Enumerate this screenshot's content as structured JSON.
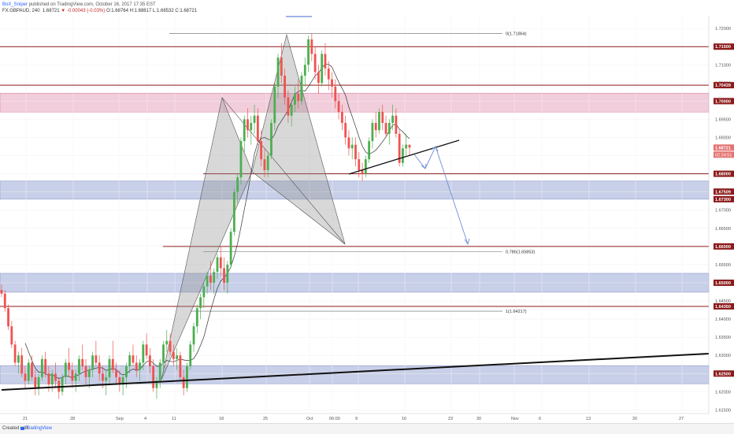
{
  "header": {
    "user": "BoX_Sniper",
    "publish_text": "published on TradingView.com, October 16, 2017 17:35 EST",
    "symbol": "FX:GBPAUD, 240",
    "last": "1.68721",
    "change": "▼ -0.00043 (-0.03%)",
    "ohlc": "O:1.68764 H:1.68817 L:1.68532 C:1.68721"
  },
  "footer": {
    "created": "Created with",
    "brand": "TradingView"
  },
  "colors": {
    "up": "#4caf50",
    "down": "#ef5350",
    "sr_line": "#8b1a1a",
    "pink_zone": "#e8a4bd",
    "blue_zone": "#9aa7d6",
    "pattern": "#9e9e9e",
    "arrow": "#6f8fd6"
  },
  "chart_data": {
    "type": "candlestick",
    "y_range": [
      1.614,
      1.7235
    ],
    "y_ticks": [
      "1.72000",
      "1.71500",
      "1.71000",
      "1.70500",
      "1.70000",
      "1.69500",
      "1.69000",
      "1.68500",
      "1.68000",
      "1.67500",
      "1.67000",
      "1.66500",
      "1.66000",
      "1.65500",
      "1.65000",
      "1.64500",
      "1.64000",
      "1.63500",
      "1.63000",
      "1.62500",
      "1.62000",
      "1.61500"
    ],
    "x_ticks": [
      "21",
      "28",
      "Sep",
      "4",
      "11",
      "18",
      "25",
      "Oct",
      "06:00",
      "9",
      "16",
      "23",
      "30",
      "Nov",
      "6",
      "13",
      "20",
      "27"
    ],
    "price_levels": [
      "1.71500",
      "1.70439",
      "1.70000",
      "1.68721",
      "1.68000",
      "1.67509",
      "1.67300",
      "1.66000",
      "1.65000",
      "1.64350",
      "1.62500"
    ],
    "levels": [
      1.715,
      1.7044,
      1.68,
      1.66,
      1.6435
    ],
    "zones": [
      {
        "kind": "supply",
        "low": 1.697,
        "high": 1.7022
      },
      {
        "kind": "demand",
        "low": 1.673,
        "high": 1.678
      },
      {
        "kind": "demand",
        "low": 1.6474,
        "high": 1.6526
      },
      {
        "kind": "demand",
        "low": 1.6222,
        "high": 1.6272
      }
    ],
    "countdown": "02:24:51",
    "fib_labels": [
      "0(1.71864)",
      "0.786(1.65853)",
      "1(1.64217)"
    ],
    "candles": [
      [
        1.648,
        1.6495,
        1.646,
        1.647
      ],
      [
        1.647,
        1.648,
        1.642,
        1.643
      ],
      [
        1.643,
        1.644,
        1.637,
        1.638
      ],
      [
        1.638,
        1.6395,
        1.632,
        1.633
      ],
      [
        1.633,
        1.634,
        1.627,
        1.628
      ],
      [
        1.628,
        1.631,
        1.625,
        1.63
      ],
      [
        1.63,
        1.632,
        1.624,
        1.625
      ],
      [
        1.625,
        1.627,
        1.621,
        1.623
      ],
      [
        1.623,
        1.629,
        1.622,
        1.628
      ],
      [
        1.628,
        1.63,
        1.623,
        1.624
      ],
      [
        1.624,
        1.626,
        1.619,
        1.621
      ],
      [
        1.621,
        1.625,
        1.619,
        1.624
      ],
      [
        1.624,
        1.63,
        1.623,
        1.629
      ],
      [
        1.629,
        1.631,
        1.624,
        1.625
      ],
      [
        1.625,
        1.627,
        1.62,
        1.622
      ],
      [
        1.622,
        1.626,
        1.62,
        1.625
      ],
      [
        1.625,
        1.628,
        1.621,
        1.623
      ],
      [
        1.623,
        1.624,
        1.618,
        1.62
      ],
      [
        1.62,
        1.625,
        1.619,
        1.624
      ],
      [
        1.624,
        1.629,
        1.622,
        1.628
      ],
      [
        1.628,
        1.632,
        1.624,
        1.626
      ],
      [
        1.626,
        1.628,
        1.621,
        1.623
      ],
      [
        1.623,
        1.626,
        1.62,
        1.625
      ],
      [
        1.625,
        1.63,
        1.623,
        1.629
      ],
      [
        1.629,
        1.633,
        1.626,
        1.627
      ],
      [
        1.627,
        1.629,
        1.622,
        1.624
      ],
      [
        1.624,
        1.627,
        1.621,
        1.626
      ],
      [
        1.626,
        1.631,
        1.624,
        1.63
      ],
      [
        1.63,
        1.634,
        1.627,
        1.628
      ],
      [
        1.628,
        1.63,
        1.623,
        1.625
      ],
      [
        1.625,
        1.627,
        1.621,
        1.623
      ],
      [
        1.623,
        1.626,
        1.619,
        1.624
      ],
      [
        1.624,
        1.63,
        1.622,
        1.629
      ],
      [
        1.629,
        1.634,
        1.625,
        1.626
      ],
      [
        1.626,
        1.628,
        1.622,
        1.624
      ],
      [
        1.624,
        1.626,
        1.62,
        1.622
      ],
      [
        1.622,
        1.625,
        1.619,
        1.624
      ],
      [
        1.624,
        1.628,
        1.621,
        1.627
      ],
      [
        1.627,
        1.631,
        1.625,
        1.63
      ],
      [
        1.63,
        1.633,
        1.627,
        1.628
      ],
      [
        1.628,
        1.63,
        1.624,
        1.626
      ],
      [
        1.626,
        1.629,
        1.623,
        1.628
      ],
      [
        1.628,
        1.634,
        1.626,
        1.633
      ],
      [
        1.633,
        1.636,
        1.629,
        1.63
      ],
      [
        1.63,
        1.632,
        1.625,
        1.627
      ],
      [
        1.627,
        1.629,
        1.62,
        1.621
      ],
      [
        1.621,
        1.624,
        1.618,
        1.623
      ],
      [
        1.623,
        1.629,
        1.621,
        1.628
      ],
      [
        1.628,
        1.634,
        1.626,
        1.633
      ],
      [
        1.633,
        1.637,
        1.631,
        1.634
      ],
      [
        1.634,
        1.636,
        1.63,
        1.631
      ],
      [
        1.631,
        1.633,
        1.627,
        1.629
      ],
      [
        1.629,
        1.632,
        1.626,
        1.63
      ],
      [
        1.63,
        1.631,
        1.623,
        1.624
      ],
      [
        1.624,
        1.626,
        1.619,
        1.621
      ],
      [
        1.621,
        1.628,
        1.62,
        1.627
      ],
      [
        1.627,
        1.634,
        1.626,
        1.633
      ],
      [
        1.633,
        1.639,
        1.631,
        1.638
      ],
      [
        1.638,
        1.644,
        1.636,
        1.643
      ],
      [
        1.643,
        1.647,
        1.64,
        1.646
      ],
      [
        1.646,
        1.65,
        1.643,
        1.649
      ],
      [
        1.649,
        1.653,
        1.647,
        1.652
      ],
      [
        1.652,
        1.656,
        1.648,
        1.65
      ],
      [
        1.65,
        1.654,
        1.647,
        1.653
      ],
      [
        1.653,
        1.658,
        1.651,
        1.657
      ],
      [
        1.657,
        1.66,
        1.652,
        1.654
      ],
      [
        1.654,
        1.657,
        1.648,
        1.65
      ],
      [
        1.65,
        1.656,
        1.647,
        1.655
      ],
      [
        1.655,
        1.665,
        1.654,
        1.664
      ],
      [
        1.664,
        1.676,
        1.663,
        1.675
      ],
      [
        1.675,
        1.68,
        1.672,
        1.679
      ],
      [
        1.679,
        1.69,
        1.677,
        1.689
      ],
      [
        1.689,
        1.696,
        1.686,
        1.695
      ],
      [
        1.695,
        1.698,
        1.69,
        1.692
      ],
      [
        1.692,
        1.696,
        1.688,
        1.694
      ],
      [
        1.694,
        1.699,
        1.691,
        1.696
      ],
      [
        1.696,
        1.698,
        1.688,
        1.689
      ],
      [
        1.689,
        1.692,
        1.682,
        1.684
      ],
      [
        1.684,
        1.687,
        1.679,
        1.681
      ],
      [
        1.681,
        1.686,
        1.679,
        1.685
      ],
      [
        1.685,
        1.695,
        1.684,
        1.694
      ],
      [
        1.694,
        1.705,
        1.692,
        1.704
      ],
      [
        1.704,
        1.713,
        1.701,
        1.712
      ],
      [
        1.712,
        1.716,
        1.705,
        1.707
      ],
      [
        1.707,
        1.709,
        1.699,
        1.701
      ],
      [
        1.701,
        1.703,
        1.694,
        1.696
      ],
      [
        1.696,
        1.7,
        1.693,
        1.699
      ],
      [
        1.699,
        1.704,
        1.697,
        1.702
      ],
      [
        1.702,
        1.706,
        1.698,
        1.7
      ],
      [
        1.7,
        1.708,
        1.699,
        1.707
      ],
      [
        1.707,
        1.712,
        1.704,
        1.71
      ],
      [
        1.71,
        1.718,
        1.708,
        1.717
      ],
      [
        1.717,
        1.7186,
        1.711,
        1.713
      ],
      [
        1.713,
        1.715,
        1.706,
        1.708
      ],
      [
        1.708,
        1.71,
        1.702,
        1.705
      ],
      [
        1.705,
        1.714,
        1.704,
        1.713
      ],
      [
        1.713,
        1.716,
        1.707,
        1.709
      ],
      [
        1.709,
        1.711,
        1.703,
        1.706
      ],
      [
        1.706,
        1.708,
        1.701,
        1.704
      ],
      [
        1.704,
        1.706,
        1.698,
        1.7
      ],
      [
        1.7,
        1.702,
        1.695,
        1.697
      ],
      [
        1.697,
        1.699,
        1.692,
        1.694
      ],
      [
        1.694,
        1.696,
        1.688,
        1.69
      ],
      [
        1.69,
        1.692,
        1.685,
        1.687
      ],
      [
        1.687,
        1.69,
        1.684,
        1.688
      ],
      [
        1.688,
        1.69,
        1.682,
        1.684
      ],
      [
        1.684,
        1.686,
        1.679,
        1.681
      ],
      [
        1.681,
        1.683,
        1.678,
        1.68
      ],
      [
        1.68,
        1.685,
        1.679,
        1.684
      ],
      [
        1.684,
        1.69,
        1.683,
        1.689
      ],
      [
        1.689,
        1.695,
        1.687,
        1.694
      ],
      [
        1.694,
        1.697,
        1.69,
        1.692
      ],
      [
        1.692,
        1.698,
        1.691,
        1.697
      ],
      [
        1.697,
        1.699,
        1.692,
        1.694
      ],
      [
        1.694,
        1.696,
        1.69,
        1.691
      ],
      [
        1.691,
        1.695,
        1.688,
        1.694
      ],
      [
        1.694,
        1.699,
        1.692,
        1.696
      ],
      [
        1.696,
        1.698,
        1.69,
        1.691
      ],
      [
        1.691,
        1.692,
        1.682,
        1.683
      ],
      [
        1.683,
        1.688,
        1.682,
        1.687
      ],
      [
        1.687,
        1.691,
        1.685,
        1.688
      ],
      [
        1.688,
        1.688,
        1.685,
        1.6872
      ]
    ]
  }
}
